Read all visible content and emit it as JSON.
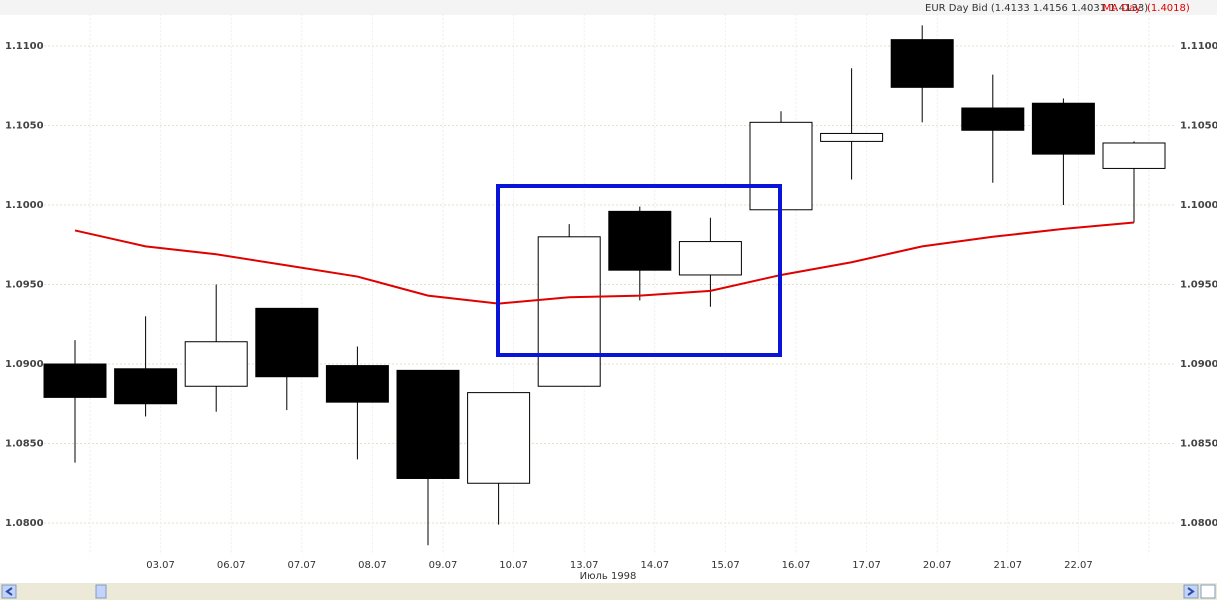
{
  "chart_data": {
    "type": "candlestick",
    "title": "EUR Day Bid (1.4133 1.4156 1.4031 1.4133)",
    "x_label": "Июль 1998",
    "categories": [
      null,
      "03.07",
      "06.07",
      "07.07",
      "08.07",
      "09.07",
      "10.07",
      "13.07",
      "14.07",
      "15.07",
      "16.07",
      "17.07",
      "20.07",
      "21.07",
      "22.07",
      null
    ],
    "open": [
      1.09,
      1.0897,
      1.0886,
      1.0935,
      1.0899,
      1.0896,
      1.0825,
      1.0886,
      1.0996,
      1.0956,
      1.0997,
      1.104,
      1.1104,
      1.1061,
      1.1064,
      1.1023
    ],
    "high": [
      1.0915,
      1.093,
      1.095,
      1.0935,
      1.0911,
      1.0896,
      1.0882,
      1.0988,
      1.0999,
      1.0992,
      1.1059,
      1.1086,
      1.1113,
      1.1082,
      1.1067,
      1.104
    ],
    "low": [
      1.0838,
      1.0867,
      1.087,
      1.0871,
      1.084,
      1.0786,
      1.0799,
      1.0886,
      1.094,
      1.0936,
      1.0997,
      1.1016,
      1.1052,
      1.1014,
      1.1,
      1.0989
    ],
    "close": [
      1.0879,
      1.0875,
      1.0914,
      1.0892,
      1.0876,
      1.0828,
      1.0882,
      1.098,
      1.0959,
      1.0977,
      1.1052,
      1.1045,
      1.1074,
      1.1047,
      1.1032,
      1.1039
    ],
    "up_color": "#ffffff",
    "down_color": "#000000",
    "ma": {
      "name": "MA Day",
      "label": "(1.4018)",
      "color": "#e00000",
      "values": [
        1.0984,
        1.0974,
        1.0969,
        1.0962,
        1.0955,
        1.0943,
        1.0938,
        1.0942,
        1.0943,
        1.0946,
        1.0956,
        1.0964,
        1.0974,
        1.098,
        1.0985,
        1.0989
      ]
    },
    "ylim": [
      1.078,
      1.112
    ],
    "yticks": [
      {
        "value": 1.08,
        "label": "1.0800"
      },
      {
        "value": 1.085,
        "label": "1.0850"
      },
      {
        "value": 1.09,
        "label": "1.0900"
      },
      {
        "value": 1.095,
        "label": "1.0950"
      },
      {
        "value": 1.1,
        "label": "1.1000"
      },
      {
        "value": 1.105,
        "label": "1.1050"
      },
      {
        "value": 1.11,
        "label": "1.1100"
      }
    ],
    "grid": true
  }
}
